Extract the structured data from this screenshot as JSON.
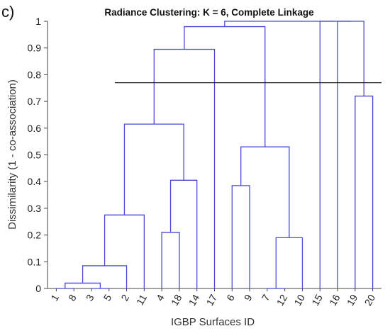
{
  "panel_label": "c)",
  "chart_data": {
    "type": "dendrogram",
    "title": "Radiance Clustering: K = 6, Complete Linkage",
    "xlabel": "IGBP Surfaces ID",
    "ylabel": "Dissimilarity (1 - co-association)",
    "ylim": [
      0,
      1
    ],
    "yticks": [
      "0",
      "0.1",
      "0.2",
      "0.3",
      "0.4",
      "0.5",
      "0.6",
      "0.7",
      "0.8",
      "0.9",
      "1"
    ],
    "leaf_order": [
      "1",
      "8",
      "3",
      "5",
      "2",
      "11",
      "4",
      "18",
      "14",
      "17",
      "6",
      "9",
      "7",
      "12",
      "10",
      "15",
      "16",
      "19",
      "20"
    ],
    "cut_height": 0.77,
    "link_color": "#4a4ad8",
    "merges": [
      {
        "left": "1",
        "right": "8",
        "height": 0.0
      },
      {
        "left": "3",
        "right": "5",
        "height": 0.0
      },
      {
        "left": "1,8",
        "right": "3,5",
        "height": 0.02
      },
      {
        "left": "1,8,3,5",
        "right": "2",
        "height": 0.085
      },
      {
        "left": "1,8,3,5,2",
        "right": "11",
        "height": 0.275
      },
      {
        "left": "4",
        "right": "18",
        "height": 0.21
      },
      {
        "left": "4,18",
        "right": "14",
        "height": 0.405
      },
      {
        "left": "1,8,3,5,2,11",
        "right": "4,18,14",
        "height": 0.615
      },
      {
        "left": "1,8,3,5,2,11,4,18,14",
        "right": "17",
        "height": 0.895
      },
      {
        "left": "6",
        "right": "9",
        "height": 0.385
      },
      {
        "left": "7",
        "right": "12",
        "height": 0.0
      },
      {
        "left": "7,12",
        "right": "10",
        "height": 0.19
      },
      {
        "left": "6,9",
        "right": "7,12,10",
        "height": 0.53
      },
      {
        "left": "1,8,3,5,2,11,4,18,14,17",
        "right": "6,9,7,12,10",
        "height": 0.98
      },
      {
        "left": "19",
        "right": "20",
        "height": 0.72
      },
      {
        "left": "16",
        "right": "19,20",
        "height": 1.0
      },
      {
        "left": "15",
        "right": "16,19,20",
        "height": 1.0
      },
      {
        "left": "1,8,3,5,2,11,4,18,14,17,6,9,7,12,10",
        "right": "15,16,19,20",
        "height": 1.0
      }
    ]
  }
}
